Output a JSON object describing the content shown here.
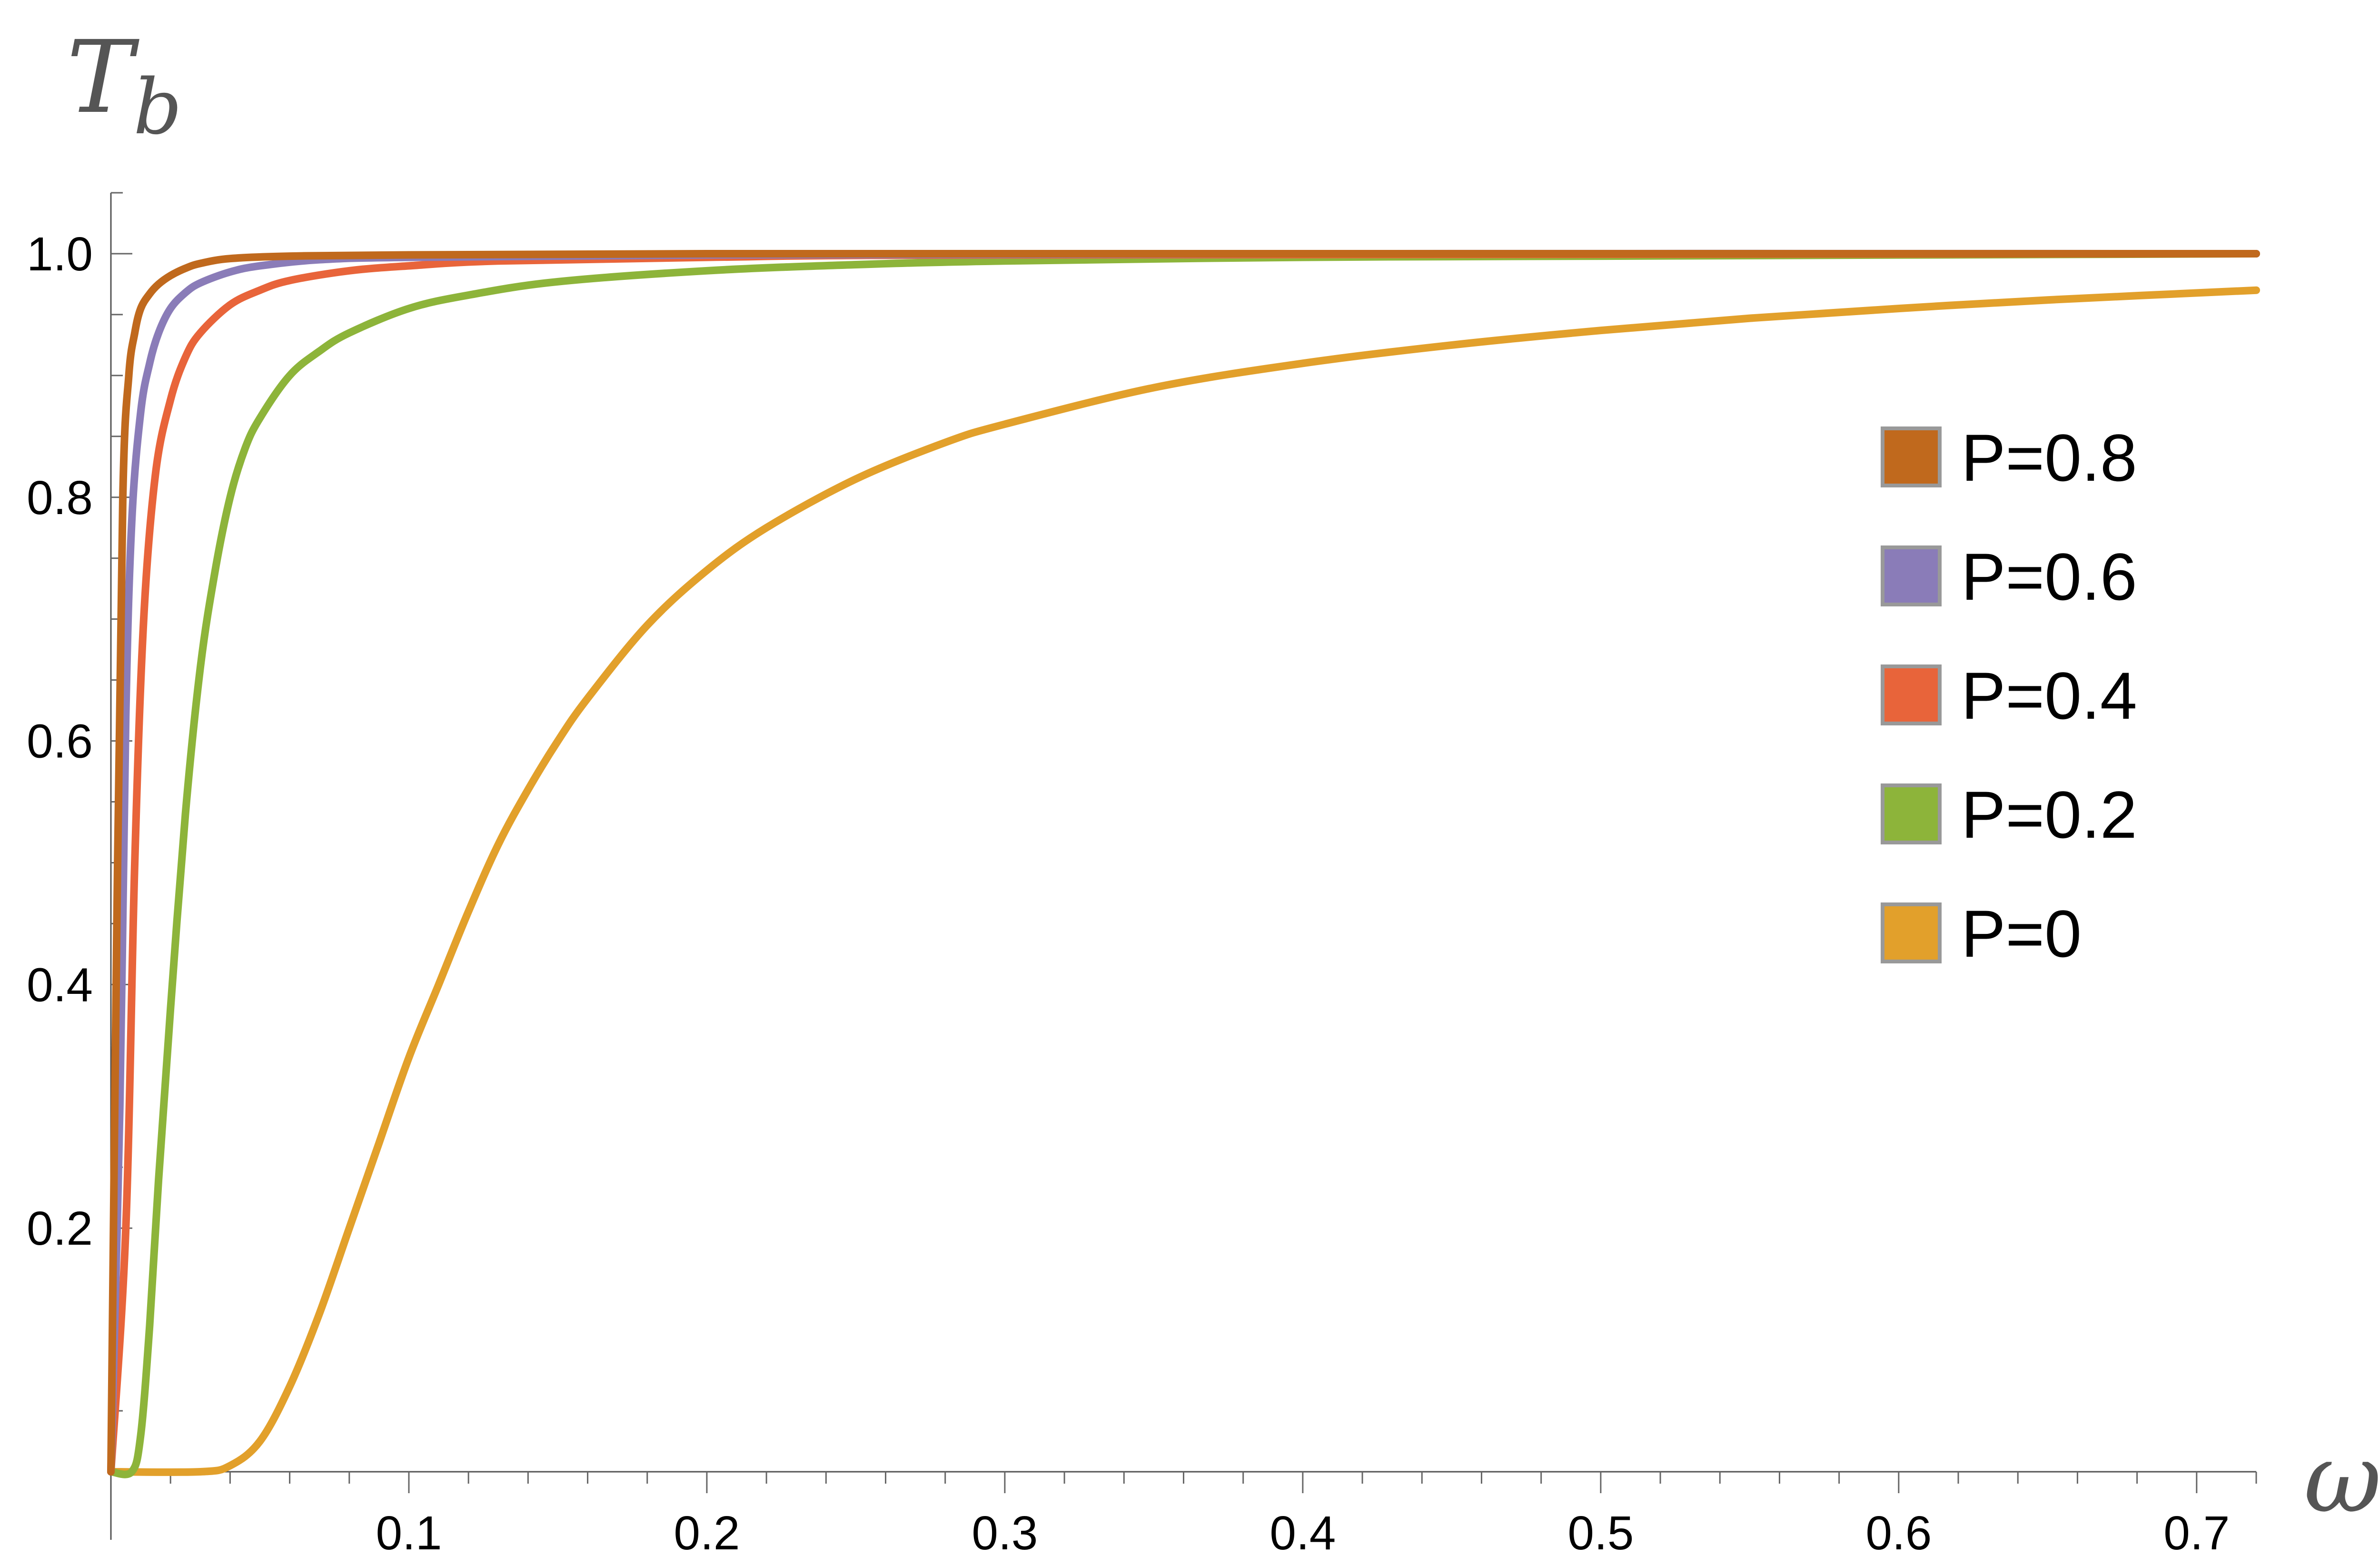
{
  "chart_data": {
    "type": "line",
    "xlabel": "ω",
    "ylabel": "T",
    "ylabel_sub": "b",
    "xlim": [
      0,
      0.72
    ],
    "ylim": [
      0,
      1.05
    ],
    "x_ticks": [
      0.1,
      0.2,
      0.3,
      0.4,
      0.5,
      0.6,
      0.7
    ],
    "x_tick_labels": [
      "0.1",
      "0.2",
      "0.3",
      "0.4",
      "0.5",
      "0.6",
      "0.7"
    ],
    "y_ticks": [
      0.2,
      0.4,
      0.6,
      0.8,
      1.0
    ],
    "y_tick_labels": [
      "0.2",
      "0.4",
      "0.6",
      "0.8",
      "1.0"
    ],
    "grid": false,
    "legend_position": "right",
    "series": [
      {
        "name": "P=0.8",
        "color": "#c0691d",
        "x": [
          0,
          0.002,
          0.004,
          0.006,
          0.008,
          0.01,
          0.013,
          0.016,
          0.02,
          0.025,
          0.03,
          0.04,
          0.06,
          0.1,
          0.2,
          0.4,
          0.72
        ],
        "y": [
          0,
          0.45,
          0.8,
          0.9,
          0.935,
          0.955,
          0.967,
          0.975,
          0.982,
          0.988,
          0.992,
          0.996,
          0.998,
          0.999,
          1.0,
          1.0,
          1.0
        ]
      },
      {
        "name": "P=0.6",
        "color": "#8a7cb8",
        "x": [
          0,
          0.003,
          0.005,
          0.007,
          0.01,
          0.013,
          0.016,
          0.02,
          0.025,
          0.03,
          0.04,
          0.05,
          0.07,
          0.1,
          0.2,
          0.4,
          0.72
        ],
        "y": [
          0,
          0.3,
          0.62,
          0.78,
          0.87,
          0.91,
          0.935,
          0.955,
          0.968,
          0.976,
          0.985,
          0.99,
          0.995,
          0.997,
          0.999,
          1.0,
          1.0
        ]
      },
      {
        "name": "P=0.4",
        "color": "#e8643a",
        "x": [
          0,
          0.005,
          0.008,
          0.011,
          0.015,
          0.02,
          0.025,
          0.03,
          0.04,
          0.05,
          0.06,
          0.08,
          0.1,
          0.13,
          0.2,
          0.3,
          0.72
        ],
        "y": [
          0,
          0.2,
          0.5,
          0.7,
          0.82,
          0.88,
          0.915,
          0.935,
          0.958,
          0.97,
          0.978,
          0.986,
          0.99,
          0.994,
          0.997,
          0.999,
          1.0
        ]
      },
      {
        "name": "P=0.2",
        "color": "#8db43a",
        "x": [
          0,
          0.007,
          0.01,
          0.013,
          0.016,
          0.02,
          0.025,
          0.03,
          0.035,
          0.04,
          0.045,
          0.05,
          0.06,
          0.07,
          0.08,
          0.1,
          0.12,
          0.15,
          0.2,
          0.25,
          0.3,
          0.4,
          0.5,
          0.72
        ],
        "y": [
          0,
          0.0,
          0.03,
          0.12,
          0.24,
          0.38,
          0.54,
          0.66,
          0.74,
          0.8,
          0.84,
          0.865,
          0.9,
          0.92,
          0.935,
          0.955,
          0.966,
          0.977,
          0.986,
          0.991,
          0.994,
          0.997,
          0.998,
          1.0
        ]
      },
      {
        "name": "P=0",
        "color": "#e2a02b",
        "x": [
          0,
          0.03,
          0.04,
          0.05,
          0.06,
          0.07,
          0.08,
          0.09,
          0.1,
          0.11,
          0.12,
          0.13,
          0.14,
          0.15,
          0.16,
          0.18,
          0.2,
          0.22,
          0.25,
          0.28,
          0.3,
          0.35,
          0.4,
          0.45,
          0.5,
          0.55,
          0.6,
          0.65,
          0.72
        ],
        "y": [
          0,
          0.0,
          0.005,
          0.025,
          0.07,
          0.13,
          0.2,
          0.27,
          0.34,
          0.4,
          0.46,
          0.515,
          0.56,
          0.6,
          0.635,
          0.695,
          0.74,
          0.775,
          0.815,
          0.845,
          0.86,
          0.89,
          0.91,
          0.925,
          0.937,
          0.947,
          0.955,
          0.962,
          0.97
        ]
      }
    ]
  }
}
